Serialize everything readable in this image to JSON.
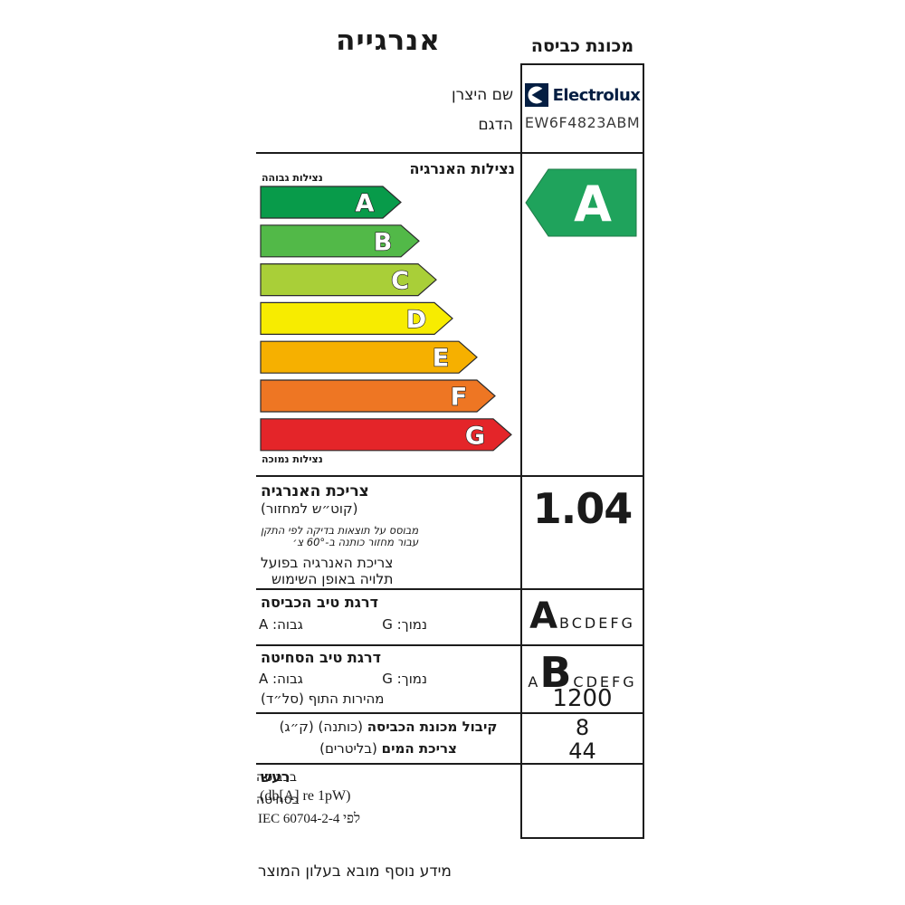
{
  "label": {
    "energy_title": "אנרגייה",
    "appliance_title": "מכונת כביסה",
    "manufacturer_label": "שם היצרן",
    "model_label": "הדגם",
    "brand": "Electrolux",
    "model": "EW6F4823ABM",
    "footer_note": "מידע נוסף מובא בעלון המוצר"
  },
  "efficiency_scale": {
    "header": "נצילות האנרגיה",
    "high_label": "נצילות גבוהה",
    "low_label": "נצילות נמוכה",
    "bars": [
      {
        "letter": "A",
        "color": "#089b4a",
        "body_width": 135
      },
      {
        "letter": "B",
        "color": "#52b948",
        "body_width": 155
      },
      {
        "letter": "C",
        "color": "#a9cf38",
        "body_width": 174
      },
      {
        "letter": "D",
        "color": "#f7ec00",
        "body_width": 192
      },
      {
        "letter": "E",
        "color": "#f6b000",
        "body_width": 219
      },
      {
        "letter": "F",
        "color": "#ee7623",
        "body_width": 239
      },
      {
        "letter": "G",
        "color": "#e42529",
        "body_width": 257
      }
    ],
    "rated_grade": "A",
    "rated_grade_color": "#1fa35c"
  },
  "energy_consumption": {
    "title": "צריכת האנרגיה",
    "unit": "(קוט״ש למחזור)",
    "note_line1": "מבוסס על תוצאות בדיקה לפי התקן",
    "note_line2": "עבור מחזור כותנה ב-60° צ׳",
    "actual_line1": "צריכת האנרגיה בפועל",
    "actual_line2": "תלויה באופן השימוש",
    "value": "1.04"
  },
  "wash_quality": {
    "title": "דרגת טיב הכביסה",
    "high": "גבוה: A",
    "low": "נמוך: G",
    "grade": "A",
    "scale_after": "BCDEFG"
  },
  "spin_quality": {
    "title": "דרגת טיב הסחיטה",
    "high": "גבוה: A",
    "low": "נמוך: G",
    "drum_speed_label": "מהירות התוף (סל״ד)",
    "scale_before": "A",
    "grade": "B",
    "scale_after": "CDEFG",
    "spin_speed": "1200"
  },
  "capacity": {
    "line1_bold": "קיבול מכונת הכביסה",
    "line1_paren": "(כותנה) (ק״ג)",
    "line2_bold": "צריכת המים",
    "line2_paren": "(בליטרים)",
    "capacity_value": "8",
    "water_value": "44"
  },
  "noise": {
    "title": "רעש",
    "unit": "(db[A] re 1pW)",
    "standard": "לפי IEC 60704-2-4",
    "washing_label": "בכביסה",
    "spinning_label": "בסחיטה"
  },
  "colors": {
    "brand_navy": "#041e42",
    "line_color": "#1c1c1c"
  }
}
